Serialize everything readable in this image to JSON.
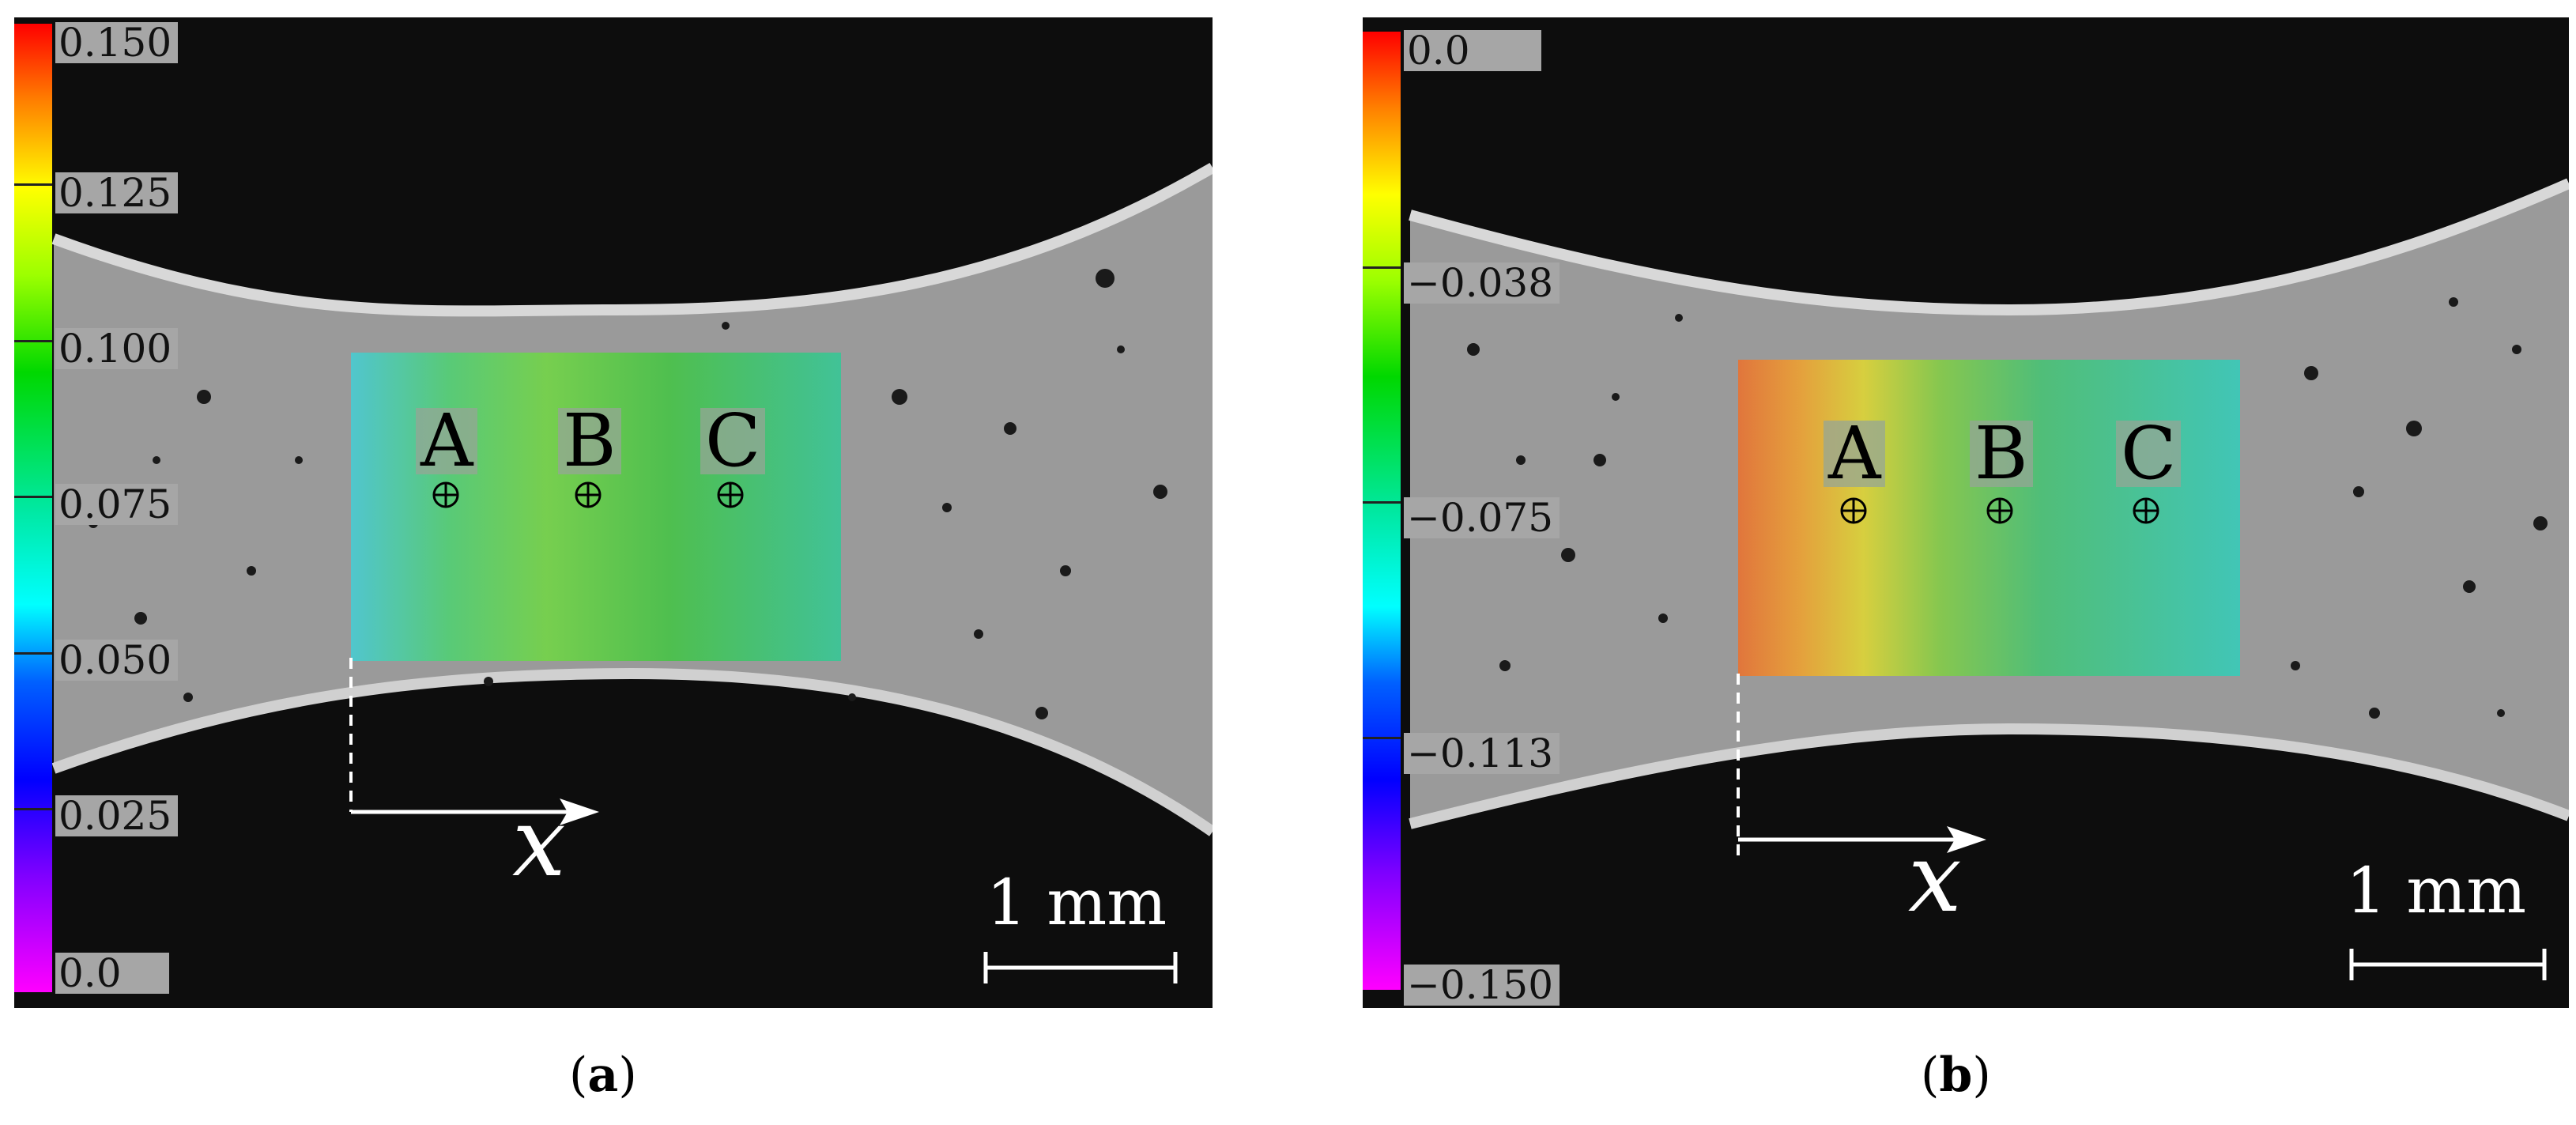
{
  "panel_a": {
    "caption_open": "(",
    "caption_letter": "a",
    "caption_close": ")",
    "colorbar_ticks": [
      "0.150",
      "0.125",
      "0.100",
      "0.075",
      "0.050",
      "0.025",
      "0.0"
    ],
    "points": [
      "A",
      "B",
      "C"
    ],
    "axis_label": "x",
    "scale_bar": "1 mm"
  },
  "panel_b": {
    "caption_open": "(",
    "caption_letter": "b",
    "caption_close": ")",
    "colorbar_ticks": [
      "0.0",
      "−0.038",
      "−0.075",
      "−0.113",
      "−0.150"
    ],
    "points": [
      "A",
      "B",
      "C"
    ],
    "axis_label": "x",
    "scale_bar": "1 mm"
  }
}
